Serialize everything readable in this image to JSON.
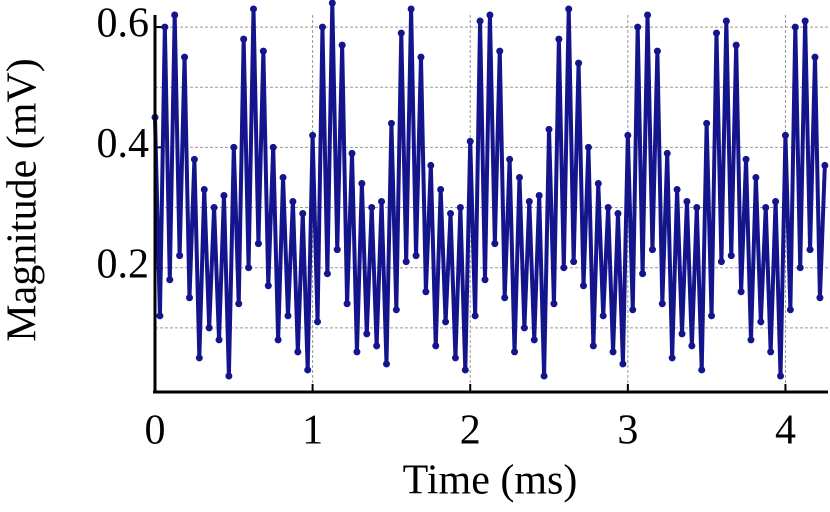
{
  "chart_data": {
    "type": "line",
    "x_label": "Time (ms)",
    "y_label": "Magnitude (mV)",
    "xlim": [
      0,
      4.27
    ],
    "ylim": [
      0,
      0.64
    ],
    "xticks": [
      0,
      1,
      2,
      3,
      4
    ],
    "yticks": [
      0.2,
      0.4,
      0.6
    ],
    "yminor": [
      0.1,
      0.3,
      0.5
    ],
    "grid": true,
    "series": [
      {
        "color": "#14148c",
        "x": [
          0,
          0.03125,
          0.0625,
          0.09375,
          0.125,
          0.15625,
          0.1875,
          0.21875,
          0.25,
          0.28125,
          0.3125,
          0.34375,
          0.375,
          0.40625,
          0.4375,
          0.46875,
          0.5,
          0.53125,
          0.5625,
          0.59375,
          0.625,
          0.65625,
          0.6875,
          0.71875,
          0.75,
          0.78125,
          0.8125,
          0.84375,
          0.875,
          0.90625,
          0.9375,
          0.96875,
          1,
          1.03125,
          1.0625,
          1.09375,
          1.125,
          1.15625,
          1.1875,
          1.21875,
          1.25,
          1.28125,
          1.3125,
          1.34375,
          1.375,
          1.40625,
          1.4375,
          1.46875,
          1.5,
          1.53125,
          1.5625,
          1.59375,
          1.625,
          1.65625,
          1.6875,
          1.71875,
          1.75,
          1.78125,
          1.8125,
          1.84375,
          1.875,
          1.90625,
          1.9375,
          1.96875,
          2,
          2.03125,
          2.0625,
          2.09375,
          2.125,
          2.15625,
          2.1875,
          2.21875,
          2.25,
          2.28125,
          2.3125,
          2.34375,
          2.375,
          2.40625,
          2.4375,
          2.46875,
          2.5,
          2.53125,
          2.5625,
          2.59375,
          2.625,
          2.65625,
          2.6875,
          2.71875,
          2.75,
          2.78125,
          2.8125,
          2.84375,
          2.875,
          2.90625,
          2.9375,
          2.96875,
          3,
          3.03125,
          3.0625,
          3.09375,
          3.125,
          3.15625,
          3.1875,
          3.21875,
          3.25,
          3.28125,
          3.3125,
          3.34375,
          3.375,
          3.40625,
          3.4375,
          3.46875,
          3.5,
          3.53125,
          3.5625,
          3.59375,
          3.625,
          3.65625,
          3.6875,
          3.71875,
          3.75,
          3.78125,
          3.8125,
          3.84375,
          3.875,
          3.90625,
          3.9375,
          3.96875,
          4,
          4.03125,
          4.0625,
          4.09375,
          4.125,
          4.15625,
          4.1875,
          4.21875,
          4.25
        ],
        "values": [
          0.45,
          0.12,
          0.6,
          0.18,
          0.62,
          0.22,
          0.55,
          0.15,
          0.38,
          0.05,
          0.33,
          0.1,
          0.3,
          0.08,
          0.32,
          0.02,
          0.4,
          0.14,
          0.58,
          0.2,
          0.63,
          0.24,
          0.56,
          0.17,
          0.4,
          0.08,
          0.35,
          0.12,
          0.31,
          0.06,
          0.29,
          0.03,
          0.42,
          0.11,
          0.6,
          0.19,
          0.64,
          0.23,
          0.57,
          0.14,
          0.39,
          0.06,
          0.34,
          0.09,
          0.3,
          0.07,
          0.31,
          0.04,
          0.44,
          0.13,
          0.59,
          0.21,
          0.63,
          0.22,
          0.55,
          0.16,
          0.37,
          0.07,
          0.33,
          0.11,
          0.29,
          0.05,
          0.3,
          0.03,
          0.41,
          0.12,
          0.61,
          0.18,
          0.62,
          0.24,
          0.56,
          0.15,
          0.38,
          0.06,
          0.35,
          0.1,
          0.31,
          0.08,
          0.32,
          0.02,
          0.43,
          0.14,
          0.58,
          0.2,
          0.63,
          0.21,
          0.54,
          0.17,
          0.4,
          0.07,
          0.34,
          0.12,
          0.3,
          0.06,
          0.29,
          0.04,
          0.42,
          0.13,
          0.6,
          0.19,
          0.62,
          0.23,
          0.56,
          0.14,
          0.39,
          0.05,
          0.33,
          0.09,
          0.31,
          0.07,
          0.3,
          0.03,
          0.44,
          0.12,
          0.59,
          0.21,
          0.61,
          0.22,
          0.57,
          0.16,
          0.38,
          0.08,
          0.35,
          0.11,
          0.3,
          0.06,
          0.31,
          0.02,
          0.42,
          0.13,
          0.6,
          0.2,
          0.61,
          0.23,
          0.55,
          0.15,
          0.37
        ]
      }
    ]
  }
}
